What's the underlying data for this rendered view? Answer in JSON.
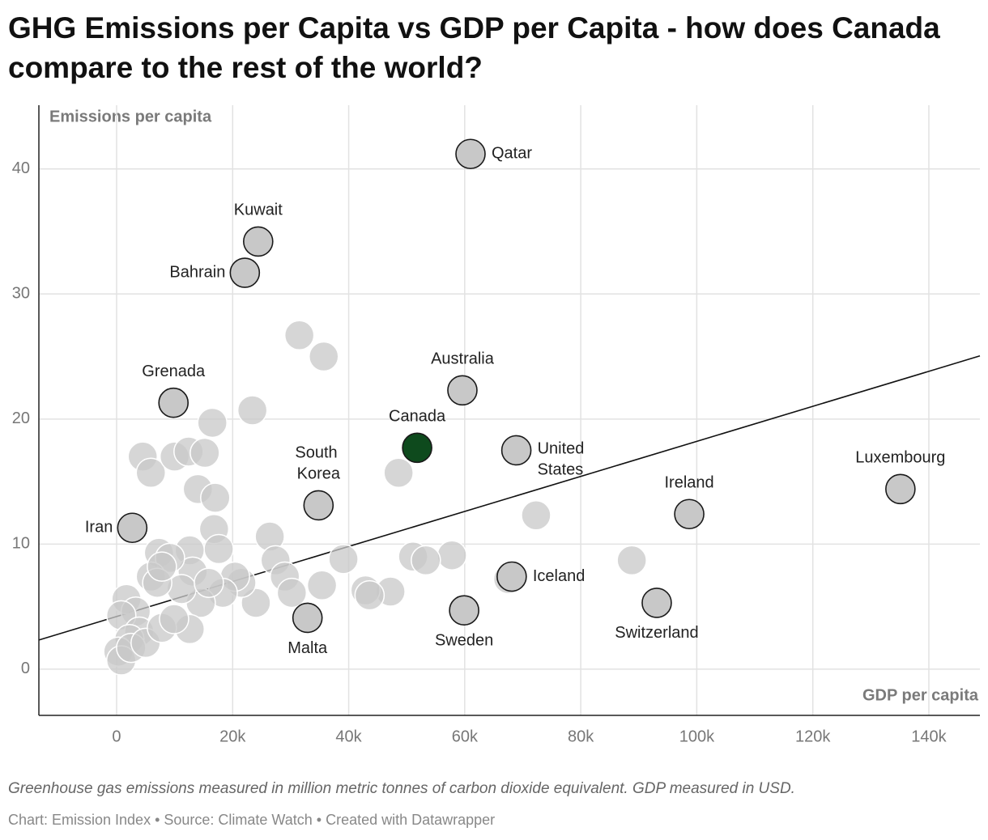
{
  "chart_data": {
    "type": "scatter",
    "title": "GHG Emissions per Capita vs GDP per Capita - how does Canada compare to the rest of the world?",
    "x_label": "GDP per capita",
    "y_label": "Emissions per capita",
    "note": "Greenhouse gas emissions measured in million metric tonnes of carbon dioxide equivalent. GDP measured in USD.",
    "source": "Chart: Emission Index • Source: Climate Watch • Created with Datawrapper",
    "xlim": [
      -13400,
      148800
    ],
    "ylim": [
      -3.7,
      45.1
    ],
    "xticks": [
      {
        "value": 0,
        "label": "0"
      },
      {
        "value": 20000,
        "label": "20k"
      },
      {
        "value": 40000,
        "label": "40k"
      },
      {
        "value": 60000,
        "label": "60k"
      },
      {
        "value": 80000,
        "label": "80k"
      },
      {
        "value": 100000,
        "label": "100k"
      },
      {
        "value": 120000,
        "label": "120k"
      },
      {
        "value": 140000,
        "label": "140k"
      }
    ],
    "yticks": [
      0,
      10,
      20,
      30,
      40
    ],
    "grid": true,
    "trendline": {
      "x": [
        -13400,
        148800
      ],
      "y": [
        2.33,
        25.05
      ],
      "color": "#111111"
    },
    "series": [
      {
        "color": "#c8c8c8",
        "x": [
          61000,
          24400,
          22100,
          9800,
          59600,
          68900,
          34800,
          2700,
          135100,
          98700,
          68100,
          93100,
          59900,
          32900,
          31500,
          35700,
          23400,
          16500,
          4500,
          5900,
          10000,
          12400,
          15200,
          14000,
          17000,
          16800,
          17600,
          48600,
          72300,
          88800,
          57800,
          51100,
          53300,
          39100,
          47200,
          42900,
          43600,
          35400,
          67500,
          26400,
          27400,
          29000,
          30200,
          24000,
          21500,
          20400,
          18300,
          12600,
          13100,
          14500,
          12600,
          7300,
          9200,
          5900,
          11200,
          1700,
          3300,
          800,
          3900,
          2200,
          300,
          800,
          2500,
          5000,
          7800,
          9900,
          7000,
          15900,
          7800
        ],
        "y": [
          41.2,
          34.2,
          31.7,
          21.3,
          22.3,
          17.5,
          13.1,
          11.3,
          14.4,
          12.4,
          7.4,
          5.3,
          4.7,
          4.1,
          26.7,
          25.0,
          20.7,
          19.7,
          17.0,
          15.7,
          17.0,
          17.4,
          17.3,
          14.4,
          13.7,
          11.2,
          9.6,
          15.7,
          12.3,
          8.7,
          9.1,
          9.0,
          8.7,
          8.8,
          6.2,
          6.3,
          5.9,
          6.7,
          7.2,
          10.6,
          8.7,
          7.4,
          6.1,
          5.3,
          6.9,
          7.4,
          6.1,
          9.5,
          7.8,
          5.3,
          3.2,
          9.3,
          8.9,
          7.4,
          6.4,
          5.6,
          4.6,
          4.3,
          3.0,
          2.4,
          1.4,
          0.7,
          1.7,
          2.1,
          3.3,
          4.0,
          6.9,
          6.9,
          8.2
        ],
        "labels": [
          "Qatar",
          "Kuwait",
          "Bahrain",
          "Grenada",
          "Australia",
          "United States",
          "South Korea",
          "Iran",
          "Luxembourg",
          "Ireland",
          "Iceland",
          "Switzerland",
          "Sweden",
          "Malta",
          null,
          null,
          null,
          null,
          null,
          null,
          null,
          null,
          null,
          null,
          null,
          null,
          null,
          null,
          null,
          null,
          null,
          null,
          null,
          null,
          null,
          null,
          null,
          null,
          null,
          null,
          null,
          null,
          null,
          null,
          null,
          null,
          null,
          null,
          null,
          null,
          null,
          null,
          null,
          null,
          null,
          null,
          null,
          null,
          null,
          null,
          null,
          null,
          null,
          null,
          null,
          null,
          null,
          null,
          null
        ]
      },
      {
        "color": "#0e4a1d",
        "x": [
          51800
        ],
        "y": [
          17.7
        ],
        "labels": [
          "Canada"
        ]
      }
    ]
  }
}
